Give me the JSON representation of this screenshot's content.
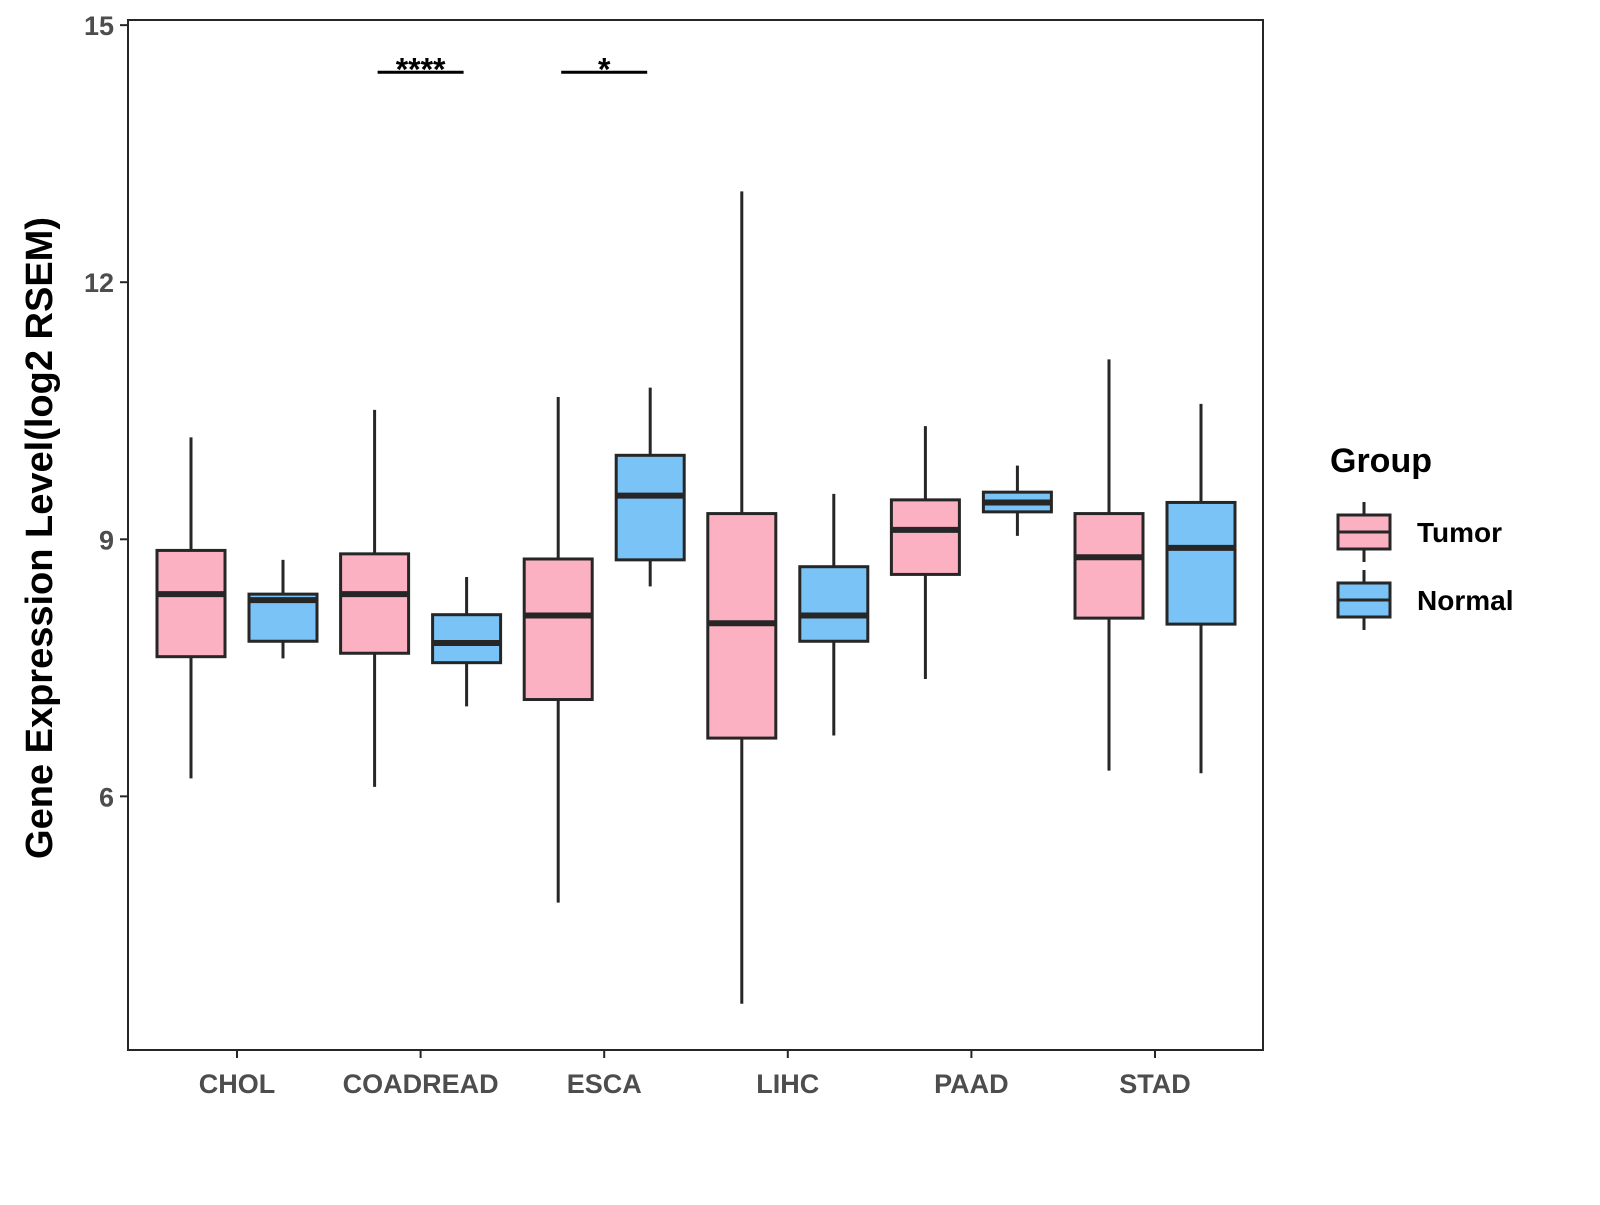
{
  "chart_data": {
    "type": "box",
    "title": "",
    "xlabel": "",
    "ylabel": "Gene Expression Level(log2 RSEM)",
    "ylim": [
      3.04,
      15.06
    ],
    "yticks": [
      6,
      9,
      12,
      15
    ],
    "grid": false,
    "categories": [
      "CHOL",
      "COADREAD",
      "ESCA",
      "LIHC",
      "PAAD",
      "STAD"
    ],
    "legend": {
      "title": "Group",
      "placement": "right",
      "entries": [
        "Tumor",
        "Normal"
      ]
    },
    "colors": {
      "Tumor": "#FBB1C1",
      "Normal": "#7AC3F7",
      "outline": "#262626"
    },
    "series": [
      {
        "name": "Tumor",
        "boxes": [
          {
            "min": 6.21,
            "q1": 7.63,
            "median": 8.36,
            "q3": 8.87,
            "max": 10.19
          },
          {
            "min": 6.11,
            "q1": 7.67,
            "median": 8.36,
            "q3": 8.83,
            "max": 10.51
          },
          {
            "min": 4.76,
            "q1": 7.13,
            "median": 8.11,
            "q3": 8.77,
            "max": 10.66
          },
          {
            "min": 3.58,
            "q1": 6.68,
            "median": 8.02,
            "q3": 9.3,
            "max": 13.06
          },
          {
            "min": 7.37,
            "q1": 8.59,
            "median": 9.11,
            "q3": 9.46,
            "max": 10.32
          },
          {
            "min": 6.3,
            "q1": 8.08,
            "median": 8.79,
            "q3": 9.3,
            "max": 11.1
          }
        ]
      },
      {
        "name": "Normal",
        "boxes": [
          {
            "min": 7.61,
            "q1": 7.81,
            "median": 8.29,
            "q3": 8.36,
            "max": 8.76
          },
          {
            "min": 7.05,
            "q1": 7.56,
            "median": 7.79,
            "q3": 8.12,
            "max": 8.56
          },
          {
            "min": 8.45,
            "q1": 8.76,
            "median": 9.51,
            "q3": 9.98,
            "max": 10.77
          },
          {
            "min": 6.71,
            "q1": 7.81,
            "median": 8.11,
            "q3": 8.68,
            "max": 9.53
          },
          {
            "min": 9.04,
            "q1": 9.32,
            "median": 9.43,
            "q3": 9.55,
            "max": 9.86
          },
          {
            "min": 6.27,
            "q1": 8.01,
            "median": 8.9,
            "q3": 9.43,
            "max": 10.58
          }
        ]
      }
    ],
    "annotations": [
      {
        "category": "COADREAD",
        "label": "****",
        "y": 14.45
      },
      {
        "category": "ESCA",
        "label": "*",
        "y": 14.45
      }
    ]
  }
}
